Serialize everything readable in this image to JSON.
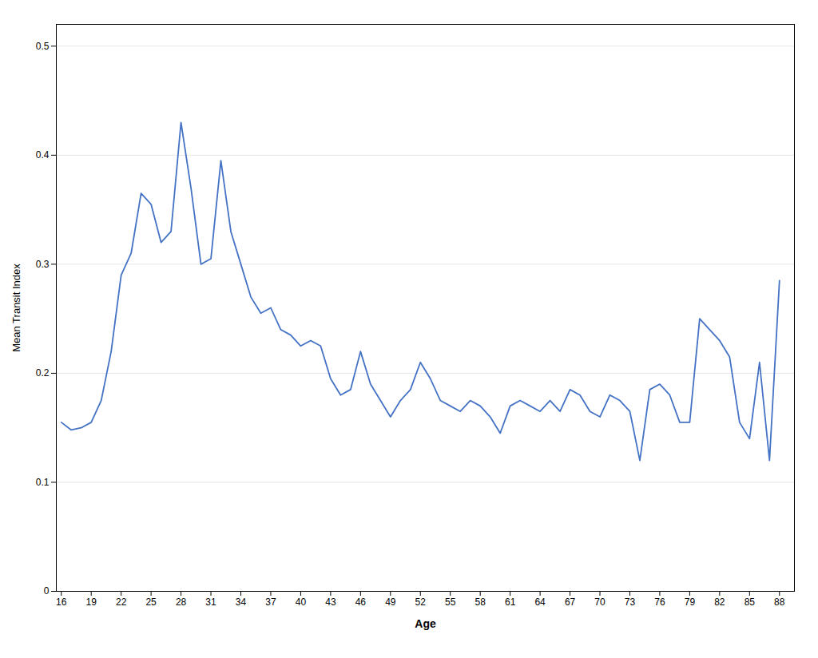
{
  "chart_data": {
    "type": "line",
    "xlabel": "Age",
    "ylabel": "Mean Transit Index",
    "x": [
      16,
      17,
      18,
      19,
      20,
      21,
      22,
      23,
      24,
      25,
      26,
      27,
      28,
      29,
      30,
      31,
      32,
      33,
      34,
      35,
      36,
      37,
      38,
      39,
      40,
      41,
      42,
      43,
      44,
      45,
      46,
      47,
      48,
      49,
      50,
      51,
      52,
      53,
      54,
      55,
      56,
      57,
      58,
      59,
      60,
      61,
      62,
      63,
      64,
      65,
      66,
      67,
      68,
      69,
      70,
      71,
      72,
      73,
      74,
      75,
      76,
      77,
      78,
      79,
      80,
      81,
      82,
      83,
      84,
      85,
      86,
      87,
      88
    ],
    "values": [
      0.155,
      0.148,
      0.15,
      0.155,
      0.175,
      0.22,
      0.29,
      0.31,
      0.365,
      0.355,
      0.32,
      0.33,
      0.43,
      0.37,
      0.3,
      0.305,
      0.395,
      0.33,
      0.3,
      0.27,
      0.255,
      0.26,
      0.24,
      0.235,
      0.225,
      0.23,
      0.225,
      0.195,
      0.18,
      0.185,
      0.22,
      0.19,
      0.175,
      0.16,
      0.175,
      0.185,
      0.21,
      0.195,
      0.175,
      0.17,
      0.165,
      0.175,
      0.17,
      0.16,
      0.145,
      0.17,
      0.175,
      0.17,
      0.165,
      0.175,
      0.165,
      0.185,
      0.18,
      0.165,
      0.16,
      0.18,
      0.175,
      0.165,
      0.12,
      0.185,
      0.19,
      0.18,
      0.155,
      0.155,
      0.25,
      0.24,
      0.23,
      0.215,
      0.155,
      0.14,
      0.21,
      0.12,
      0.285
    ],
    "color": "#4472C4",
    "xlim": [
      15.5,
      89.5
    ],
    "xticks": [
      16,
      19,
      22,
      25,
      28,
      31,
      34,
      37,
      40,
      43,
      46,
      49,
      52,
      55,
      58,
      61,
      64,
      67,
      70,
      73,
      76,
      79,
      82,
      85,
      88
    ],
    "ylim": [
      0,
      0.52
    ],
    "yticks": [
      0,
      0.1,
      0.2,
      0.3,
      0.4,
      0.5
    ],
    "grid": true
  }
}
